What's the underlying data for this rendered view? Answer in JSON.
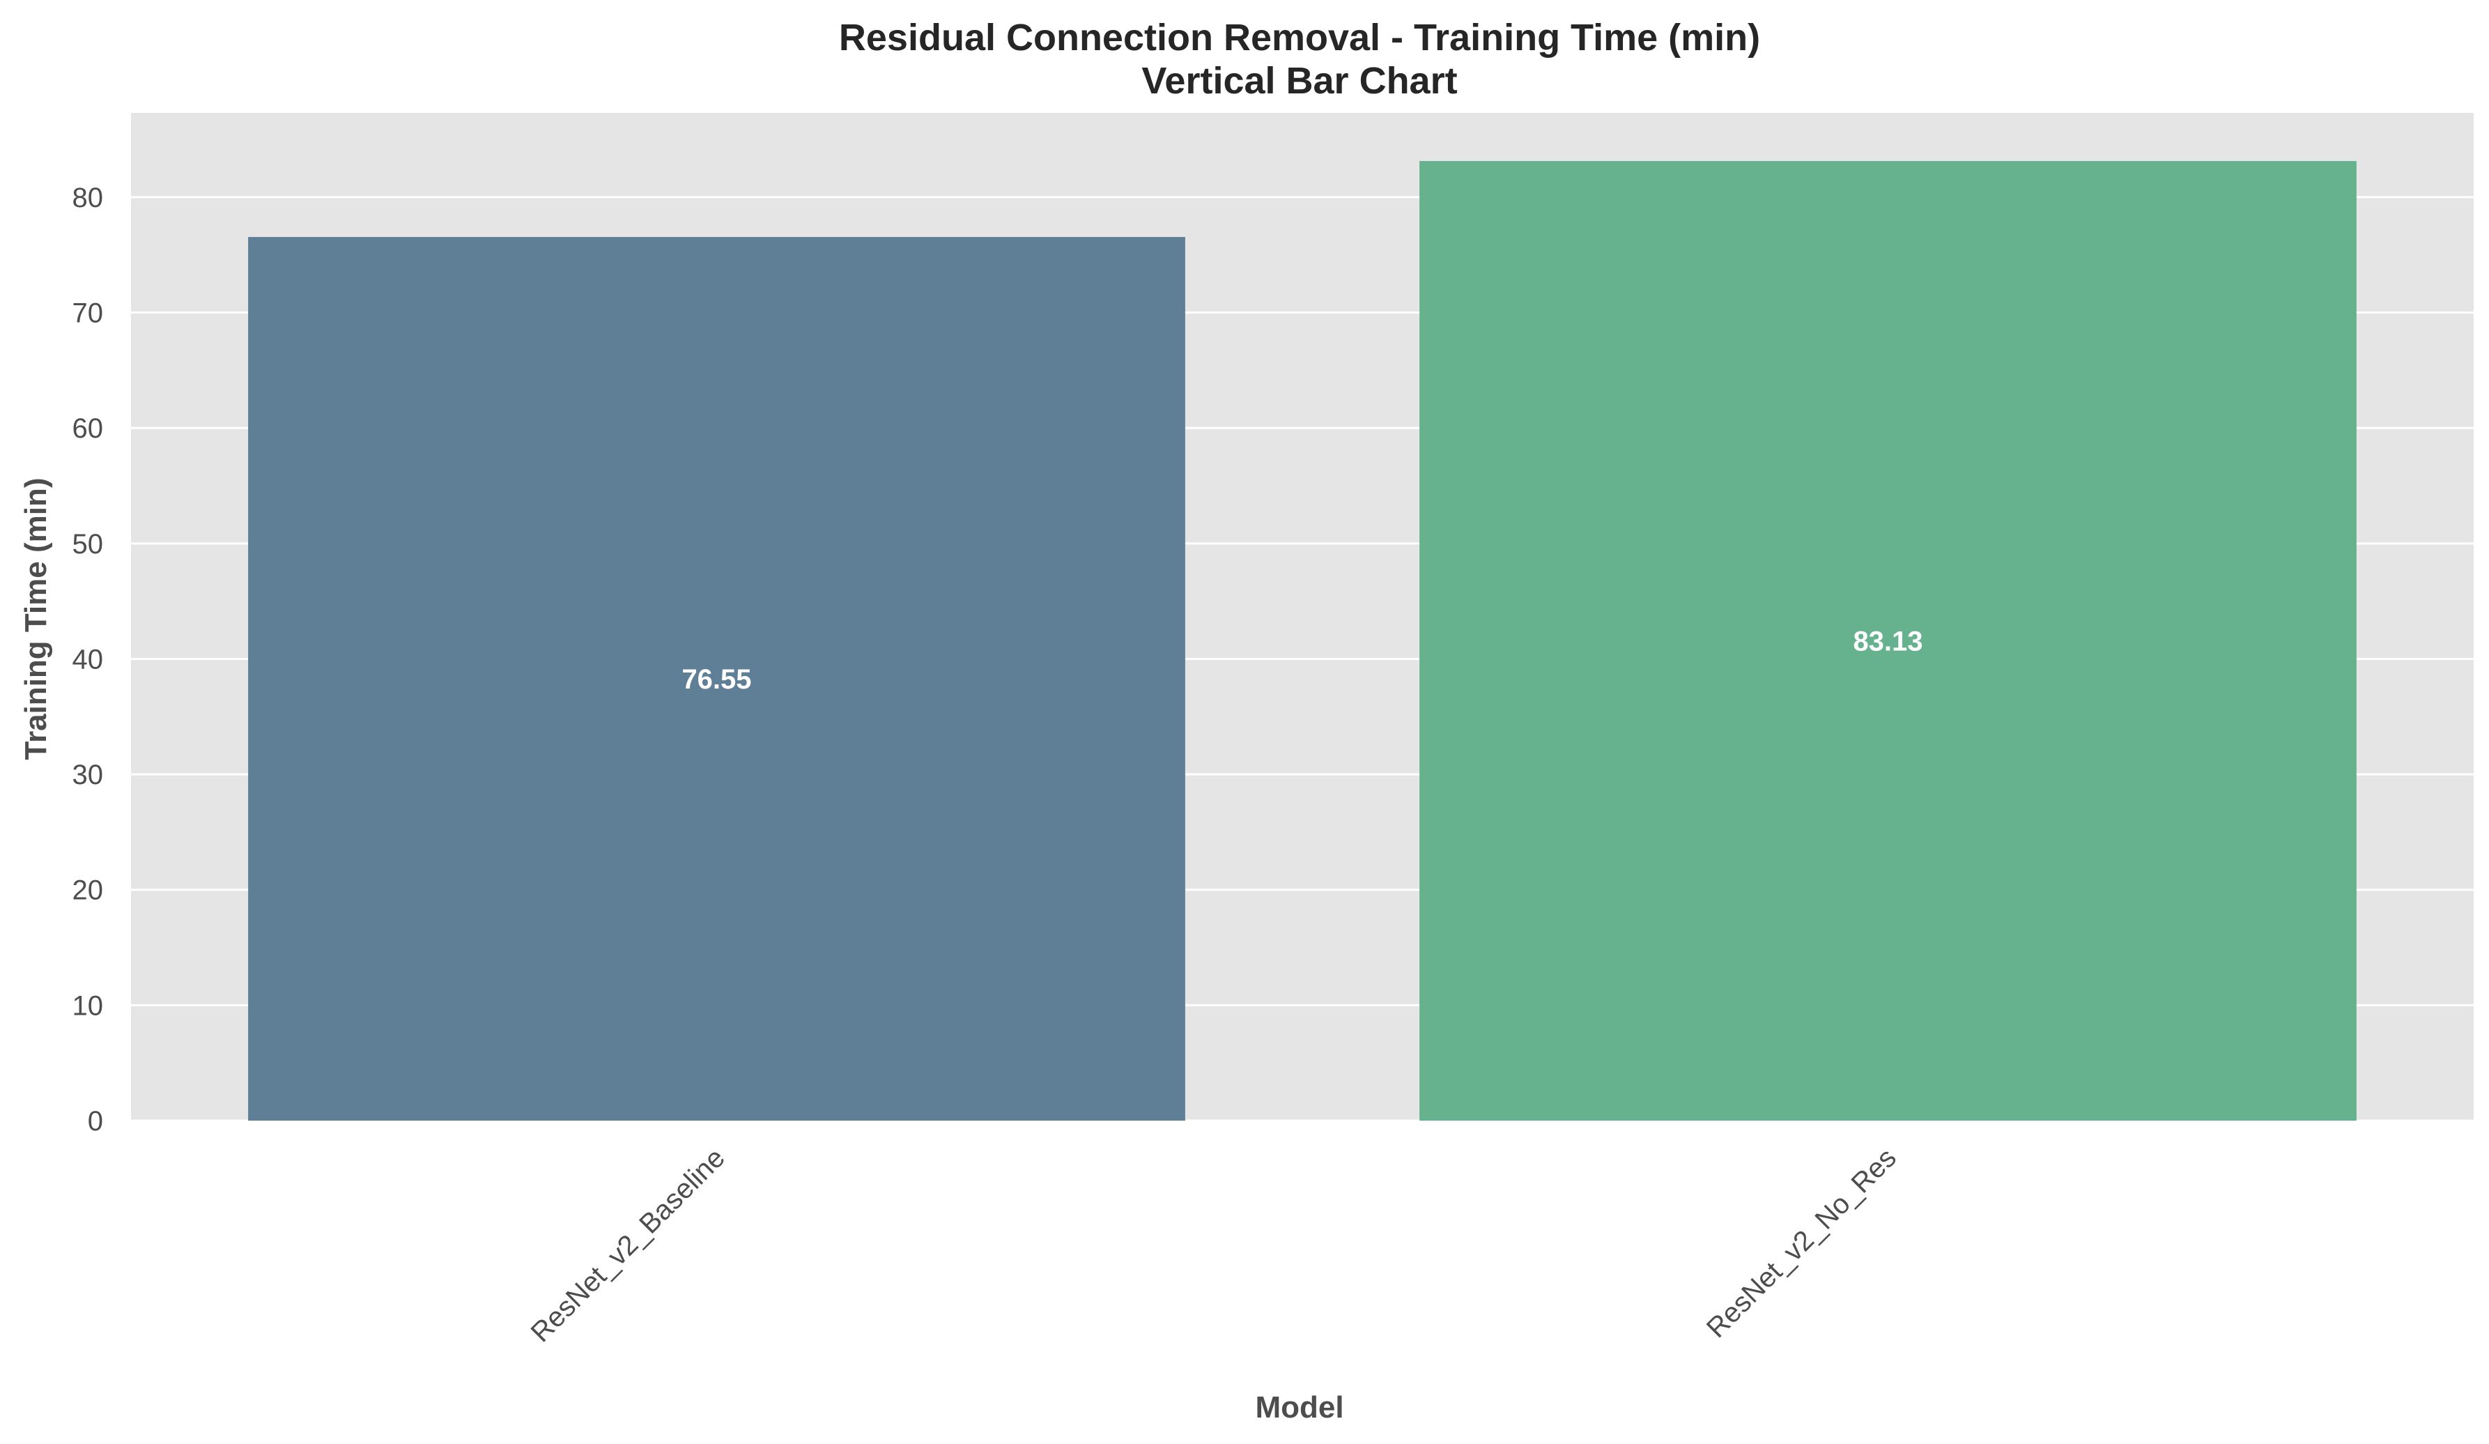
{
  "chart_data": {
    "type": "bar",
    "title": "Residual Connection Removal - Training Time (min)",
    "subtitle": "Vertical Bar Chart",
    "xlabel": "Model",
    "ylabel": "Training Time (min)",
    "categories": [
      "ResNet_v2_Baseline",
      "ResNet_v2_No_Res"
    ],
    "values": [
      76.55,
      83.13
    ],
    "value_labels": [
      "76.55",
      "83.13"
    ],
    "bar_colors": [
      "#5f7f96",
      "#66b28f"
    ],
    "ylim": [
      0,
      87.3
    ],
    "yticks": [
      0,
      10,
      20,
      30,
      40,
      50,
      60,
      70,
      80
    ],
    "ytick_labels": [
      "0",
      "10",
      "20",
      "30",
      "40",
      "50",
      "60",
      "70",
      "80"
    ],
    "grid": true,
    "plot_background": "#e5e5e5",
    "grid_color": "#ffffff",
    "legend": "none"
  }
}
